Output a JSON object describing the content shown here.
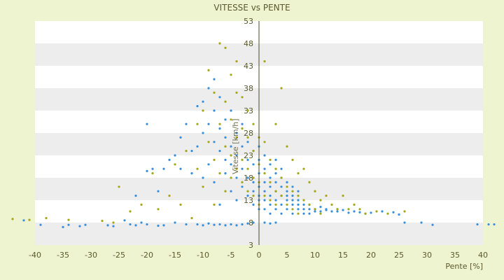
{
  "chart_data": {
    "type": "scatter",
    "title": "VITESSE vs PENTE",
    "xlabel": "Pente [%]",
    "ylabel": "Vitesse [km/h]",
    "xlim": [
      -40,
      40
    ],
    "ylim": [
      3,
      53
    ],
    "x_ticks": [
      -40,
      -35,
      -30,
      -25,
      -20,
      -15,
      -10,
      -5,
      0,
      5,
      10,
      15,
      20,
      25,
      30,
      35,
      40
    ],
    "y_ticks": [
      3,
      8,
      13,
      18,
      23,
      28,
      33,
      38,
      43,
      48,
      53
    ],
    "grid": "horizontal bands",
    "series": [
      {
        "color": "#3b8fd9",
        "marker": "dot",
        "points": [
          [
            -42,
            8.5
          ],
          [
            -39,
            7.5
          ],
          [
            -35,
            7
          ],
          [
            -34,
            7.5
          ],
          [
            -32,
            7.2
          ],
          [
            -31,
            7.5
          ],
          [
            -27,
            7.4
          ],
          [
            -26,
            7.2
          ],
          [
            -24,
            8.5
          ],
          [
            -23,
            7.6
          ],
          [
            -22,
            7.4
          ],
          [
            -21,
            8
          ],
          [
            -20,
            7.6
          ],
          [
            -18,
            7.3
          ],
          [
            -17,
            7.4
          ],
          [
            -15,
            8
          ],
          [
            -13,
            7.6
          ],
          [
            -11,
            7.6
          ],
          [
            -10,
            7.4
          ],
          [
            -9,
            7.8
          ],
          [
            -8,
            7.5
          ],
          [
            -7,
            7.6
          ],
          [
            -6,
            7.4
          ],
          [
            -5,
            7.6
          ],
          [
            -4,
            7.4
          ],
          [
            -3,
            7.6
          ],
          [
            -2,
            7.8
          ],
          [
            -1,
            8
          ],
          [
            1,
            8
          ],
          [
            2,
            7.8
          ],
          [
            3,
            8
          ],
          [
            -22,
            14
          ],
          [
            -20,
            19.5
          ],
          [
            -19,
            20
          ],
          [
            -20,
            30
          ],
          [
            -18,
            15
          ],
          [
            -17,
            20
          ],
          [
            -16,
            22
          ],
          [
            -15,
            23
          ],
          [
            -14,
            20
          ],
          [
            -14,
            27
          ],
          [
            -13,
            30
          ],
          [
            -12,
            24
          ],
          [
            -12,
            19
          ],
          [
            -11,
            25
          ],
          [
            -11,
            34
          ],
          [
            -10,
            28
          ],
          [
            -10,
            35
          ],
          [
            -10,
            18
          ],
          [
            -9,
            30
          ],
          [
            -9,
            38
          ],
          [
            -9,
            21
          ],
          [
            -8,
            26
          ],
          [
            -8,
            33
          ],
          [
            -8,
            40
          ],
          [
            -8,
            17
          ],
          [
            -7,
            29
          ],
          [
            -7,
            24
          ],
          [
            -7,
            36
          ],
          [
            -7,
            12
          ],
          [
            -6,
            31
          ],
          [
            -6,
            22
          ],
          [
            -6,
            19
          ],
          [
            -6,
            27
          ],
          [
            -5,
            15
          ],
          [
            -5,
            25
          ],
          [
            -5,
            33
          ],
          [
            -5,
            21
          ],
          [
            -4,
            18
          ],
          [
            -4,
            28
          ],
          [
            -4,
            13
          ],
          [
            -4,
            23
          ],
          [
            -3,
            20
          ],
          [
            -3,
            16
          ],
          [
            -3,
            30
          ],
          [
            -3,
            25
          ],
          [
            -2,
            14
          ],
          [
            -2,
            22
          ],
          [
            -2,
            18
          ],
          [
            -2,
            26
          ],
          [
            -1,
            12
          ],
          [
            -1,
            17
          ],
          [
            -1,
            21
          ],
          [
            -1,
            24
          ],
          [
            -1,
            15
          ],
          [
            0,
            13
          ],
          [
            0,
            16
          ],
          [
            0,
            19
          ],
          [
            0,
            22
          ],
          [
            0,
            25
          ],
          [
            0,
            11
          ],
          [
            0,
            14
          ],
          [
            1,
            20
          ],
          [
            1,
            17
          ],
          [
            1,
            15
          ],
          [
            1,
            13
          ],
          [
            1,
            23
          ],
          [
            1,
            11
          ],
          [
            2,
            18
          ],
          [
            2,
            16
          ],
          [
            2,
            14
          ],
          [
            2,
            12
          ],
          [
            2,
            21
          ],
          [
            2,
            10
          ],
          [
            3,
            17
          ],
          [
            3,
            15
          ],
          [
            3,
            13
          ],
          [
            3,
            19
          ],
          [
            3,
            11
          ],
          [
            3,
            22
          ],
          [
            4,
            16
          ],
          [
            4,
            14
          ],
          [
            4,
            12
          ],
          [
            4,
            18
          ],
          [
            4,
            10
          ],
          [
            4,
            20
          ],
          [
            5,
            15
          ],
          [
            5,
            13
          ],
          [
            5,
            17
          ],
          [
            5,
            11
          ],
          [
            5,
            14
          ],
          [
            6,
            14
          ],
          [
            6,
            12
          ],
          [
            6,
            16
          ],
          [
            6,
            10
          ],
          [
            6,
            13
          ],
          [
            7,
            13
          ],
          [
            7,
            11
          ],
          [
            7,
            15
          ],
          [
            7,
            12
          ],
          [
            8,
            12
          ],
          [
            8,
            10
          ],
          [
            8,
            11
          ],
          [
            9,
            11
          ],
          [
            9,
            10
          ],
          [
            9,
            12
          ],
          [
            10,
            10.5
          ],
          [
            10,
            11
          ],
          [
            11,
            10.5
          ],
          [
            11,
            11.5
          ],
          [
            12,
            10.8
          ],
          [
            12,
            11
          ],
          [
            13,
            10.5
          ],
          [
            14,
            11
          ],
          [
            14,
            10.5
          ],
          [
            15,
            10.8
          ],
          [
            16,
            10.2
          ],
          [
            17,
            10.5
          ],
          [
            18,
            10.3
          ],
          [
            19,
            10
          ],
          [
            20,
            10.2
          ],
          [
            22,
            10.5
          ],
          [
            24,
            10.3
          ],
          [
            25,
            9.8
          ],
          [
            26,
            8
          ],
          [
            29,
            8
          ],
          [
            31,
            7.5
          ],
          [
            39,
            7.6
          ],
          [
            41,
            7.6
          ],
          [
            42,
            7.6
          ]
        ]
      },
      {
        "color": "#a3a81a",
        "marker": "dot",
        "points": [
          [
            -44,
            8.8
          ],
          [
            -41,
            8.6
          ],
          [
            -38,
            9
          ],
          [
            -34,
            8.6
          ],
          [
            -28,
            8.4
          ],
          [
            -26,
            8
          ],
          [
            -25,
            16
          ],
          [
            -23,
            10.5
          ],
          [
            -21,
            12
          ],
          [
            -19,
            19
          ],
          [
            -18,
            11
          ],
          [
            -16,
            14
          ],
          [
            -15,
            21
          ],
          [
            -14,
            12
          ],
          [
            -13,
            24
          ],
          [
            -12,
            9
          ],
          [
            -11,
            20
          ],
          [
            -11,
            30
          ],
          [
            -10,
            16
          ],
          [
            -10,
            33
          ],
          [
            -9,
            26
          ],
          [
            -9,
            42
          ],
          [
            -8,
            22
          ],
          [
            -8,
            37
          ],
          [
            -8,
            12
          ],
          [
            -7,
            48
          ],
          [
            -7,
            30
          ],
          [
            -7,
            19
          ],
          [
            -6,
            47
          ],
          [
            -6,
            35
          ],
          [
            -6,
            25
          ],
          [
            -6,
            15
          ],
          [
            -5,
            41
          ],
          [
            -5,
            31
          ],
          [
            -5,
            23
          ],
          [
            -5,
            18
          ],
          [
            -4,
            44
          ],
          [
            -4,
            37
          ],
          [
            -4,
            27
          ],
          [
            -4,
            20
          ],
          [
            -3,
            36
          ],
          [
            -3,
            29
          ],
          [
            -3,
            22
          ],
          [
            -3,
            17
          ],
          [
            -2,
            33
          ],
          [
            -2,
            27
          ],
          [
            -2,
            20
          ],
          [
            -2,
            15
          ],
          [
            -1,
            30
          ],
          [
            -1,
            24
          ],
          [
            -1,
            18
          ],
          [
            -1,
            14
          ],
          [
            0,
            27
          ],
          [
            0,
            21
          ],
          [
            0,
            17
          ],
          [
            0,
            12
          ],
          [
            1,
            26
          ],
          [
            1,
            44
          ],
          [
            1,
            19
          ],
          [
            1,
            14
          ],
          [
            2,
            22
          ],
          [
            2,
            17
          ],
          [
            2,
            13
          ],
          [
            3,
            30
          ],
          [
            3,
            20
          ],
          [
            3,
            15
          ],
          [
            3,
            12
          ],
          [
            4,
            38
          ],
          [
            4,
            18
          ],
          [
            4,
            14
          ],
          [
            5,
            25
          ],
          [
            5,
            16
          ],
          [
            5,
            12
          ],
          [
            6,
            22
          ],
          [
            6,
            15
          ],
          [
            6,
            11
          ],
          [
            7,
            19
          ],
          [
            7,
            14
          ],
          [
            7,
            10
          ],
          [
            8,
            20
          ],
          [
            8,
            13
          ],
          [
            9,
            17
          ],
          [
            9,
            12
          ],
          [
            10,
            15
          ],
          [
            10,
            11
          ],
          [
            11,
            13
          ],
          [
            11,
            10
          ],
          [
            12,
            14
          ],
          [
            13,
            12
          ],
          [
            14,
            11
          ],
          [
            15,
            14
          ],
          [
            16,
            11
          ],
          [
            17,
            12
          ],
          [
            18,
            11
          ],
          [
            19,
            10
          ],
          [
            21,
            10.5
          ],
          [
            23,
            10
          ],
          [
            26,
            10.5
          ]
        ]
      }
    ]
  }
}
